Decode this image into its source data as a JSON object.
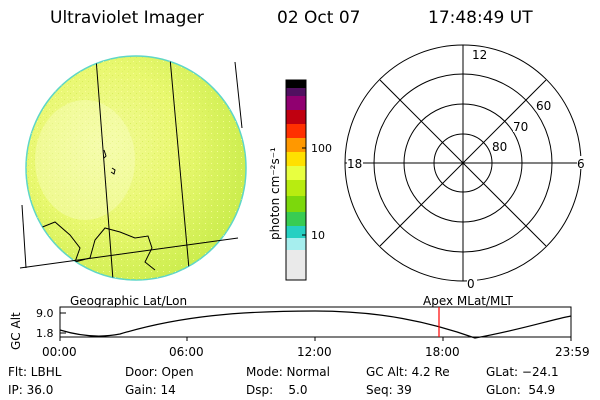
{
  "header": {
    "title": "Ultraviolet Imager",
    "date": "02 Oct 07",
    "time": "17:48:49 UT"
  },
  "colorbar": {
    "unit_label": "photon cm⁻²s⁻¹",
    "ticks": [
      "100",
      "10"
    ],
    "colors": [
      "#e6e6e6",
      "#a5f0f0",
      "#1fd2c6",
      "#3cd24a",
      "#90e000",
      "#e4ff3c",
      "#ffe400",
      "#ff8800",
      "#e00000",
      "#a00080",
      "#400060",
      "#000000"
    ]
  },
  "polar_plot": {
    "lat_labels": [
      "80",
      "70",
      "60"
    ],
    "mlt_labels": {
      "top": "12",
      "right": "6",
      "bottom": "0",
      "left": "18"
    }
  },
  "geo_label": "Geographic Lat/Lon",
  "apex_label": "Apex MLat/MLT",
  "altitude_plot": {
    "ylabel": "GC Alt",
    "yticks": [
      "9.0",
      "1.8"
    ],
    "xticks": [
      "00:00",
      "06:00",
      "12:00",
      "18:00",
      "23:59"
    ],
    "marker_color": "#ff0000"
  },
  "status": {
    "row1": {
      "flt": "Flt: LBHL",
      "door": "Door: Open",
      "mode": "Mode: Normal",
      "gcalt": "GC Alt: 4.2 Re",
      "glat": "GLat: −24.1"
    },
    "row2": {
      "ip": "IP: 36.0",
      "gain": "Gain: 14",
      "dsp": "Dsp:    5.0",
      "seq": "Seq: 39",
      "glon": "GLon:  54.9"
    }
  }
}
